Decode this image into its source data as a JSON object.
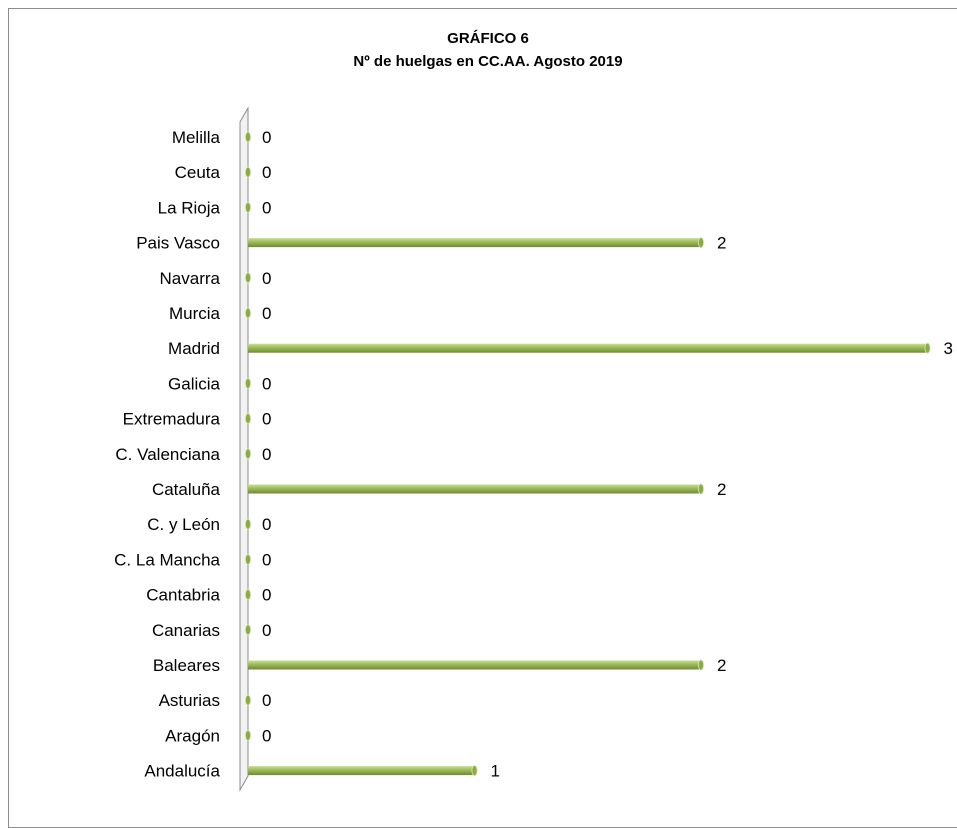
{
  "chart_data": {
    "type": "bar",
    "orientation": "horizontal",
    "title": "GRÁFICO 6",
    "subtitle": "Nº de huelgas en CC.AA. Agosto 2019",
    "categories": [
      "Andalucía",
      "Aragón",
      "Asturias",
      "Baleares",
      "Canarias",
      "Cantabria",
      "C. La Mancha",
      "C. y León",
      "Cataluña",
      "C. Valenciana",
      "Extremadura",
      "Galicia",
      "Madrid",
      "Murcia",
      "Navarra",
      "Pais Vasco",
      "La Rioja",
      "Ceuta",
      "Melilla"
    ],
    "values": [
      1,
      0,
      0,
      2,
      0,
      0,
      0,
      0,
      2,
      0,
      0,
      0,
      3,
      0,
      0,
      2,
      0,
      0,
      0
    ],
    "data_labels": true,
    "xlim": [
      0,
      3
    ],
    "grid": false,
    "legend": "none",
    "colors": {
      "bar": "#9bbb59",
      "bar_light": "#c9dd95",
      "bar_dark": "#6f8a32",
      "axis": "#8c8c8c"
    }
  }
}
